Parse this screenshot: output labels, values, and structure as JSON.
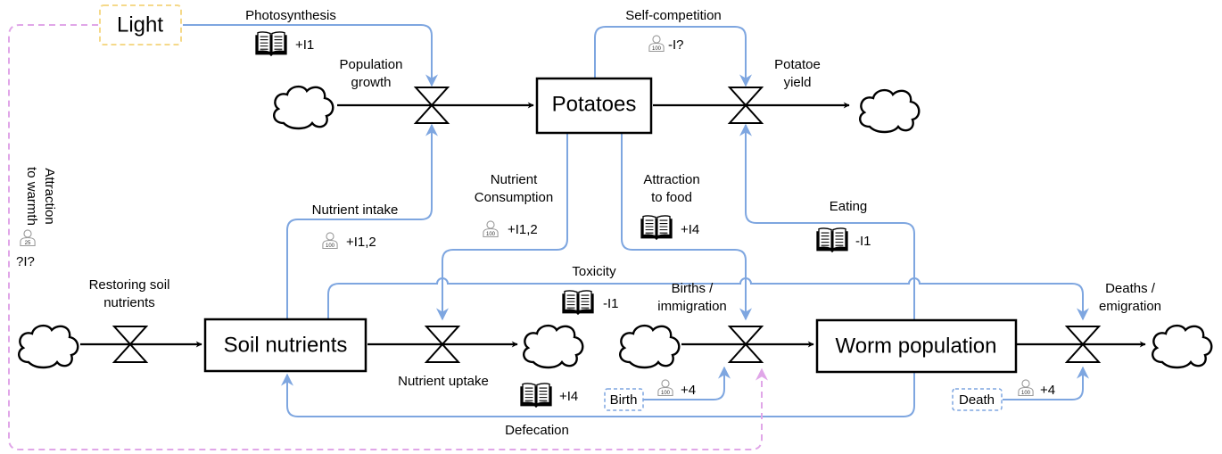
{
  "stocks": {
    "potatoes": "Potatoes",
    "soil_nutrients": "Soil nutrients",
    "worm_population": "Worm population"
  },
  "sources": {
    "light": "Light"
  },
  "flows": {
    "population_growth": "Population\ngrowth",
    "potatoe_yield": "Potatoe\nyield",
    "restoring_soil_nutrients": "Restoring soil\nnutrients",
    "nutrient_uptake": "Nutrient uptake",
    "births_immigration": "Births /\nimmigration",
    "deaths_emigration": "Deaths /\nemigration"
  },
  "links": {
    "photosynthesis": {
      "label": "Photosynthesis",
      "evidence": "+I1",
      "icon": "book-icon"
    },
    "self_competition": {
      "label": "Self-competition",
      "evidence": "-I?",
      "icon": "person-icon",
      "icon_number": "100"
    },
    "nutrient_intake": {
      "label": "Nutrient intake",
      "evidence": "+I1,2",
      "icon": "person-icon",
      "icon_number": "100"
    },
    "nutrient_consumption": {
      "label": "Nutrient\nConsumption",
      "evidence": "+I1,2",
      "icon": "person-icon",
      "icon_number": "100"
    },
    "attraction_to_food": {
      "label": "Attraction\nto food",
      "evidence": "+I4",
      "icon": "book-icon"
    },
    "eating": {
      "label": "Eating",
      "evidence": "-I1",
      "icon": "book-icon"
    },
    "toxicity": {
      "label": "Toxicity",
      "evidence": "-I1",
      "icon": "book-icon"
    },
    "defecation": {
      "label": "Defecation",
      "evidence": "+I4",
      "icon": "book-icon"
    },
    "attraction_to_warmth": {
      "label": "Attraction\nto warmth",
      "evidence": "?I?",
      "icon": "person-icon",
      "icon_number": "25"
    }
  },
  "auxiliaries": {
    "birth": {
      "label": "Birth",
      "evidence": "+4",
      "icon": "person-icon",
      "icon_number": "100"
    },
    "death": {
      "label": "Death",
      "evidence": "+4",
      "icon": "person-icon",
      "icon_number": "100"
    }
  },
  "colors": {
    "information_link": "#7ea6e0",
    "uncertain_link": "#e0a6e8",
    "light_border": "#f5d98a",
    "aux_border": "#7ea6e0"
  }
}
